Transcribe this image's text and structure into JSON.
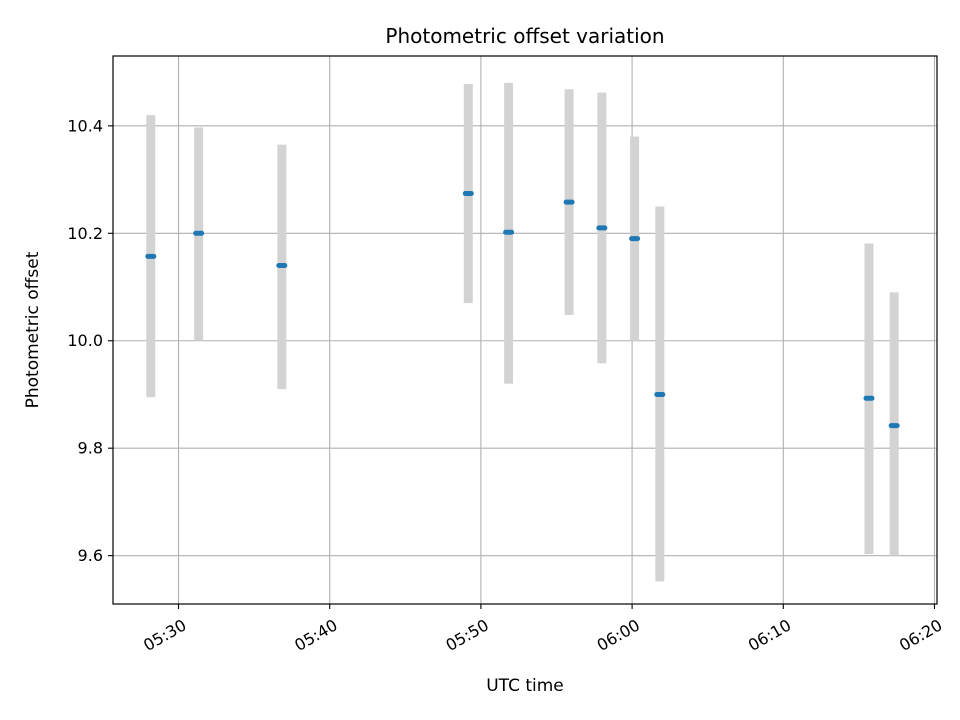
{
  "chart_data": {
    "type": "scatter",
    "title": "Photometric offset variation",
    "xlabel": "UTC time",
    "ylabel": "Photometric offset",
    "x_axis_type": "time",
    "xlim": [
      "05:25:40",
      "06:20:10"
    ],
    "ylim": [
      9.51,
      10.53
    ],
    "x_ticks": [
      "05:30",
      "05:40",
      "05:50",
      "06:00",
      "06:10",
      "06:20"
    ],
    "y_ticks": [
      "9.6",
      "9.8",
      "10.0",
      "10.2",
      "10.4"
    ],
    "y_tick_values": [
      9.6,
      9.8,
      10.0,
      10.2,
      10.4
    ],
    "grid": true,
    "error_bar_color": "#d3d3d3",
    "point_color": "#1f77b4",
    "points": [
      {
        "x": "05:28:10",
        "y": 10.157,
        "y_low": 9.895,
        "y_high": 10.42
      },
      {
        "x": "05:31:20",
        "y": 10.2,
        "y_low": 10.0,
        "y_high": 10.397
      },
      {
        "x": "05:36:50",
        "y": 10.14,
        "y_low": 9.91,
        "y_high": 10.365
      },
      {
        "x": "05:49:10",
        "y": 10.274,
        "y_low": 10.07,
        "y_high": 10.478
      },
      {
        "x": "05:51:50",
        "y": 10.202,
        "y_low": 9.92,
        "y_high": 10.48
      },
      {
        "x": "05:55:50",
        "y": 10.258,
        "y_low": 10.048,
        "y_high": 10.468
      },
      {
        "x": "05:58:00",
        "y": 10.21,
        "y_low": 9.958,
        "y_high": 10.462
      },
      {
        "x": "06:00:10",
        "y": 10.19,
        "y_low": 10.0,
        "y_high": 10.38
      },
      {
        "x": "06:01:50",
        "y": 9.9,
        "y_low": 9.552,
        "y_high": 10.25
      },
      {
        "x": "06:15:40",
        "y": 9.893,
        "y_low": 9.603,
        "y_high": 10.181
      },
      {
        "x": "06:17:20",
        "y": 9.842,
        "y_low": 9.6,
        "y_high": 10.09
      }
    ]
  }
}
